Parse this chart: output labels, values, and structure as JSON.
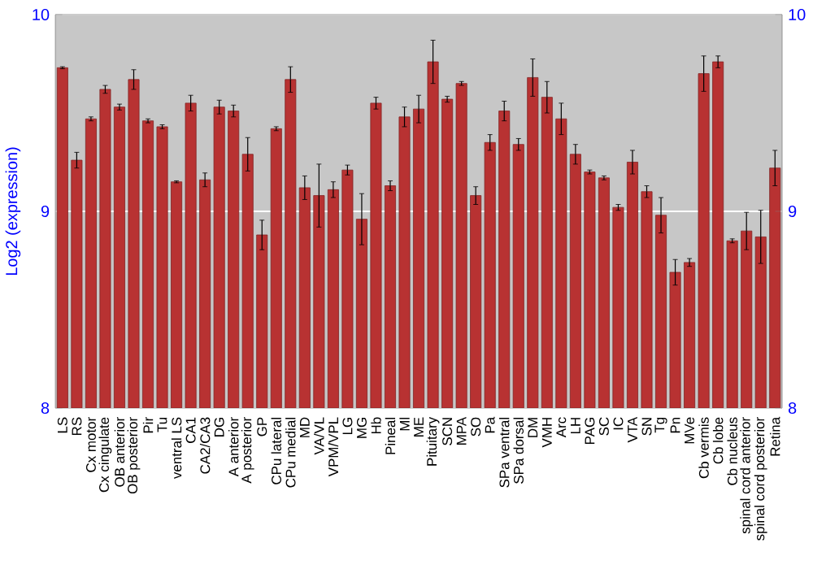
{
  "chart_data": {
    "type": "bar",
    "ylabel": "Log2 (expression)",
    "categories": [
      "LS",
      "RS",
      "Cx motor",
      "Cx cingulate",
      "OB anterior",
      "OB posterior",
      "Pir",
      "Tu",
      "ventral LS",
      "CA1",
      "CA2/CA3",
      "DG",
      "A anterior",
      "A posterior",
      "GP",
      "CPu lateral",
      "CPu medial",
      "MD",
      "VA/VL",
      "VPM/VPL",
      "LG",
      "MG",
      "Hb",
      "Pineal",
      "Ml",
      "ME",
      "Pituitary",
      "SCN",
      "MPA",
      "SO",
      "Pa",
      "SPa ventral",
      "SPa dorsal",
      "DM",
      "VMH",
      "Arc",
      "LH",
      "PAG",
      "SC",
      "IC",
      "VTA",
      "SN",
      "Tg",
      "Pn",
      "MVe",
      "Cb vermis",
      "Cb lobe",
      "Cb nucleus",
      "spinal cord anterior",
      "spinal cord posterior",
      "Retina"
    ],
    "values": [
      9.73,
      9.26,
      9.47,
      9.62,
      9.53,
      9.67,
      9.46,
      9.43,
      9.15,
      9.55,
      9.16,
      9.53,
      9.51,
      9.29,
      8.88,
      9.42,
      9.67,
      9.12,
      9.08,
      9.11,
      9.21,
      8.96,
      9.55,
      9.13,
      9.48,
      9.52,
      9.76,
      9.57,
      9.65,
      9.08,
      9.35,
      9.51,
      9.34,
      9.68,
      9.58,
      9.47,
      9.29,
      9.2,
      9.17,
      9.02,
      9.25,
      9.1,
      8.98,
      8.69,
      8.74,
      9.7,
      9.76,
      8.85,
      8.9,
      8.87,
      9.22
    ],
    "errors": [
      0.005,
      0.04,
      0.01,
      0.02,
      0.015,
      0.05,
      0.01,
      0.01,
      0.005,
      0.04,
      0.035,
      0.035,
      0.03,
      0.085,
      0.075,
      0.01,
      0.065,
      0.06,
      0.16,
      0.04,
      0.025,
      0.13,
      0.03,
      0.025,
      0.05,
      0.07,
      0.11,
      0.015,
      0.01,
      0.045,
      0.04,
      0.05,
      0.03,
      0.095,
      0.08,
      0.08,
      0.05,
      0.01,
      0.01,
      0.015,
      0.06,
      0.03,
      0.09,
      0.065,
      0.02,
      0.09,
      0.03,
      0.01,
      0.095,
      0.135,
      0.09
    ],
    "color": "#b83232",
    "ylim": [
      8,
      10
    ],
    "yticks": [
      8,
      9,
      10
    ],
    "y2lim": [
      8,
      10
    ],
    "y2ticks": [
      8,
      9,
      10
    ],
    "grid": "y"
  }
}
